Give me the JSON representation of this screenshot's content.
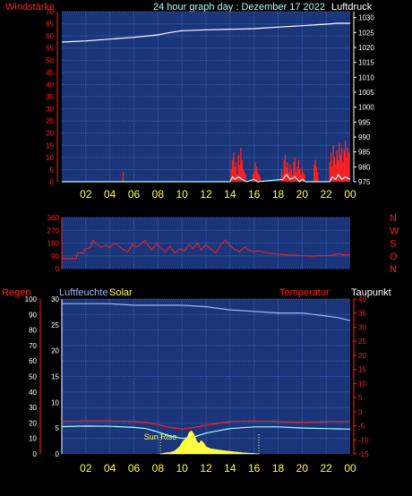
{
  "header": {
    "left_label": "Windstärke",
    "title": "24 hour graph day : Dezember 17 2022",
    "right_label": "Luftdruck"
  },
  "colors": {
    "background": "#000000",
    "plot_bg": "#1a3579",
    "grid": "#3f62b8",
    "red": "#ff2020",
    "white": "#ffffff",
    "cyan": "#a8ffff",
    "yellow": "#ffff40",
    "lightblue": "#a0b4ff"
  },
  "chart_data": [
    {
      "id": "top",
      "type": "line",
      "title": "24 hour graph day : Dezember 17 2022",
      "x_tick_labels": [
        "02",
        "04",
        "06",
        "08",
        "10",
        "12",
        "14",
        "16",
        "18",
        "20",
        "22",
        "00"
      ],
      "left_axis": {
        "label": "Windstärke",
        "ylim": [
          0,
          70
        ],
        "ticks": [
          0,
          5,
          10,
          15,
          20,
          25,
          30,
          35,
          40,
          45,
          50,
          55,
          60,
          65,
          70
        ]
      },
      "right_axis": {
        "label": "Luftdruck",
        "ylim": [
          975,
          1032
        ],
        "ticks": [
          975,
          980,
          985,
          990,
          995,
          1000,
          1005,
          1010,
          1015,
          1020,
          1025,
          1030
        ]
      },
      "series": [
        {
          "axis": "right",
          "color": "white",
          "kind": "line",
          "points": [
            [
              0,
              1021.8
            ],
            [
              2,
              1022.2
            ],
            [
              4,
              1022.8
            ],
            [
              6,
              1023.4
            ],
            [
              8,
              1024.2
            ],
            [
              9,
              1025.0
            ],
            [
              10,
              1025.6
            ],
            [
              12,
              1025.9
            ],
            [
              14,
              1026.1
            ],
            [
              16,
              1026.3
            ],
            [
              18,
              1026.8
            ],
            [
              20,
              1027.3
            ],
            [
              22,
              1027.8
            ],
            [
              23,
              1028.1
            ],
            [
              24,
              1028.1
            ]
          ]
        },
        {
          "axis": "left",
          "color": "red",
          "kind": "bars",
          "points": [
            [
              5.1,
              4
            ],
            [
              14.1,
              5
            ],
            [
              14.2,
              9
            ],
            [
              14.3,
              12
            ],
            [
              14.4,
              6
            ],
            [
              14.5,
              8
            ],
            [
              14.6,
              3
            ],
            [
              14.7,
              11
            ],
            [
              14.8,
              7
            ],
            [
              14.9,
              14
            ],
            [
              15.0,
              9
            ],
            [
              15.1,
              5
            ],
            [
              15.2,
              4
            ],
            [
              15.3,
              3
            ],
            [
              15.9,
              3
            ],
            [
              16.0,
              4
            ],
            [
              16.1,
              8
            ],
            [
              16.2,
              6
            ],
            [
              16.3,
              4
            ],
            [
              16.4,
              3
            ],
            [
              16.5,
              2
            ],
            [
              18.3,
              5
            ],
            [
              18.4,
              3
            ],
            [
              18.5,
              9
            ],
            [
              18.6,
              11
            ],
            [
              18.7,
              6
            ],
            [
              18.8,
              8
            ],
            [
              18.9,
              4
            ],
            [
              19.0,
              7
            ],
            [
              19.1,
              5
            ],
            [
              19.2,
              3
            ],
            [
              19.3,
              8
            ],
            [
              19.4,
              10
            ],
            [
              19.5,
              4
            ],
            [
              19.6,
              6
            ],
            [
              19.7,
              9
            ],
            [
              19.8,
              5
            ],
            [
              19.9,
              3
            ],
            [
              20.0,
              6
            ],
            [
              20.1,
              4
            ],
            [
              20.2,
              3
            ],
            [
              21.0,
              7
            ],
            [
              21.1,
              9
            ],
            [
              21.2,
              6
            ],
            [
              21.3,
              4
            ],
            [
              22.3,
              8
            ],
            [
              22.4,
              12
            ],
            [
              22.5,
              6
            ],
            [
              22.6,
              15
            ],
            [
              22.7,
              10
            ],
            [
              22.8,
              7
            ],
            [
              22.9,
              13
            ],
            [
              23.0,
              9
            ],
            [
              23.1,
              16
            ],
            [
              23.2,
              11
            ],
            [
              23.3,
              14
            ],
            [
              23.4,
              8
            ],
            [
              23.5,
              13
            ],
            [
              23.6,
              17
            ],
            [
              23.7,
              10
            ],
            [
              23.8,
              14
            ],
            [
              23.9,
              12
            ]
          ]
        },
        {
          "axis": "left",
          "color": "cyan",
          "kind": "line",
          "points": [
            [
              0,
              0
            ],
            [
              14.0,
              0
            ],
            [
              14.2,
              2
            ],
            [
              14.4,
              1
            ],
            [
              14.7,
              2
            ],
            [
              15.0,
              1
            ],
            [
              15.4,
              0
            ],
            [
              16.0,
              1
            ],
            [
              16.3,
              0
            ],
            [
              18.4,
              1
            ],
            [
              18.7,
              3
            ],
            [
              19.0,
              1
            ],
            [
              19.4,
              2
            ],
            [
              19.8,
              0
            ],
            [
              20.0,
              1
            ],
            [
              20.3,
              0
            ],
            [
              22.3,
              0
            ],
            [
              22.5,
              2
            ],
            [
              22.8,
              1
            ],
            [
              23.0,
              3
            ],
            [
              23.3,
              1
            ],
            [
              23.6,
              2
            ],
            [
              24,
              1
            ]
          ]
        }
      ]
    },
    {
      "id": "wind_direction",
      "type": "line",
      "x_tick_labels": [],
      "left_axis": {
        "ylim": [
          0,
          360
        ],
        "ticks": [
          0,
          90,
          180,
          270,
          360
        ]
      },
      "right_axis": {
        "ylim": [
          0,
          360
        ],
        "labels": [
          "N",
          "W",
          "S",
          "O",
          "N"
        ]
      },
      "series": [
        {
          "color": "red",
          "kind": "line",
          "points": [
            [
              0,
              70
            ],
            [
              1.2,
              70
            ],
            [
              1.3,
              110
            ],
            [
              1.8,
              110
            ],
            [
              1.9,
              135
            ],
            [
              2.4,
              150
            ],
            [
              2.6,
              200
            ],
            [
              2.9,
              175
            ],
            [
              3.3,
              150
            ],
            [
              3.6,
              165
            ],
            [
              4.0,
              150
            ],
            [
              4.4,
              180
            ],
            [
              4.8,
              155
            ],
            [
              5.1,
              135
            ],
            [
              5.5,
              120
            ],
            [
              5.9,
              175
            ],
            [
              6.2,
              150
            ],
            [
              6.6,
              175
            ],
            [
              6.9,
              200
            ],
            [
              7.2,
              160
            ],
            [
              7.5,
              130
            ],
            [
              7.9,
              180
            ],
            [
              8.2,
              145
            ],
            [
              8.6,
              120
            ],
            [
              9.0,
              160
            ],
            [
              9.4,
              110
            ],
            [
              9.8,
              140
            ],
            [
              10.2,
              125
            ],
            [
              10.6,
              170
            ],
            [
              10.9,
              140
            ],
            [
              11.3,
              180
            ],
            [
              11.6,
              130
            ],
            [
              12.0,
              170
            ],
            [
              12.4,
              140
            ],
            [
              12.8,
              110
            ],
            [
              13.2,
              165
            ],
            [
              13.6,
              200
            ],
            [
              14.0,
              160
            ],
            [
              14.4,
              135
            ],
            [
              14.8,
              120
            ],
            [
              15.2,
              150
            ],
            [
              15.6,
              130
            ],
            [
              16.0,
              120
            ],
            [
              16.4,
              125
            ],
            [
              16.8,
              115
            ],
            [
              17.2,
              110
            ],
            [
              17.8,
              105
            ],
            [
              18.4,
              100
            ],
            [
              19.0,
              95
            ],
            [
              19.6,
              95
            ],
            [
              20.2,
              90
            ],
            [
              20.8,
              88
            ],
            [
              21.4,
              90
            ],
            [
              22.0,
              92
            ],
            [
              22.6,
              95
            ],
            [
              23.0,
              105
            ],
            [
              23.4,
              98
            ],
            [
              24,
              100
            ]
          ]
        }
      ]
    },
    {
      "id": "bottom",
      "type": "line",
      "x_tick_labels": [
        "02",
        "04",
        "06",
        "08",
        "10",
        "12",
        "14",
        "16",
        "18",
        "20",
        "22",
        "00"
      ],
      "header_labels": {
        "regen": "Regen",
        "luftfeuchte": "Luftfeuchte",
        "solar": "Solar",
        "temperatur": "Temperatur",
        "taupunkt": "Taupunkt"
      },
      "left_axis_1": {
        "label": "Regen",
        "ylim": [
          0,
          100
        ],
        "ticks": [
          0,
          10,
          20,
          30,
          40,
          50,
          60,
          70,
          80,
          90,
          100
        ]
      },
      "left_axis_2": {
        "label": "Luftfeuchte",
        "ylim": [
          0,
          30
        ],
        "ticks": [
          0,
          5,
          10,
          15,
          20,
          25,
          30
        ]
      },
      "right_axis": {
        "label": "Temperatur",
        "ylim": [
          -15,
          40
        ],
        "ticks": [
          -15,
          -10,
          -5,
          0,
          5,
          10,
          15,
          20,
          25,
          30,
          35,
          40
        ]
      },
      "annotation": "Sun Rise",
      "sun_rise_hour": 8.2,
      "sun_set_hour": 16.4,
      "series": [
        {
          "name": "Luftfeuchte",
          "axis": "humidity",
          "color": "lightblue",
          "kind": "line",
          "points": [
            [
              0,
              97
            ],
            [
              2,
              97
            ],
            [
              4,
              97
            ],
            [
              6,
              96
            ],
            [
              8,
              96
            ],
            [
              10,
              96
            ],
            [
              12,
              95
            ],
            [
              13,
              94
            ],
            [
              14,
              93
            ],
            [
              16,
              92
            ],
            [
              18,
              91
            ],
            [
              20,
              91
            ],
            [
              21,
              90
            ],
            [
              22,
              89
            ],
            [
              23,
              88
            ],
            [
              24,
              86
            ]
          ]
        },
        {
          "name": "Temperatur",
          "axis": "temperature",
          "color": "red",
          "kind": "line",
          "points": [
            [
              0,
              -3.5
            ],
            [
              2,
              -3.3
            ],
            [
              4,
              -3.3
            ],
            [
              6,
              -3.5
            ],
            [
              7,
              -3.8
            ],
            [
              8,
              -4.6
            ],
            [
              9,
              -5.6
            ],
            [
              10,
              -6.2
            ],
            [
              11,
              -5.6
            ],
            [
              12,
              -4.8
            ],
            [
              13,
              -4.2
            ],
            [
              14,
              -3.5
            ],
            [
              16,
              -3.3
            ],
            [
              18,
              -3.5
            ],
            [
              20,
              -3.8
            ],
            [
              22,
              -3.5
            ],
            [
              24,
              -3.5
            ]
          ]
        },
        {
          "name": "Taupunkt",
          "axis": "temperature",
          "color": "cyan",
          "kind": "line",
          "points": [
            [
              0,
              -5.3
            ],
            [
              2,
              -5.1
            ],
            [
              4,
              -5.2
            ],
            [
              6,
              -5.6
            ],
            [
              7,
              -6.0
            ],
            [
              8,
              -7.2
            ],
            [
              9,
              -8.6
            ],
            [
              10,
              -9.5
            ],
            [
              11,
              -9.0
            ],
            [
              12,
              -7.6
            ],
            [
              13,
              -6.8
            ],
            [
              14,
              -6.0
            ],
            [
              16,
              -5.4
            ],
            [
              18,
              -5.4
            ],
            [
              20,
              -5.8
            ],
            [
              22,
              -6.0
            ],
            [
              24,
              -6.2
            ]
          ]
        },
        {
          "name": "Solar",
          "axis": "solar",
          "color": "yellow",
          "kind": "area",
          "points": [
            [
              8.2,
              0
            ],
            [
              8.6,
              0.2
            ],
            [
              9.0,
              0.3
            ],
            [
              9.4,
              0.6
            ],
            [
              9.8,
              1.4
            ],
            [
              10.0,
              2.2
            ],
            [
              10.2,
              2.8
            ],
            [
              10.4,
              3.0
            ],
            [
              10.6,
              4.2
            ],
            [
              10.8,
              4.5
            ],
            [
              11.0,
              3.8
            ],
            [
              11.2,
              2.6
            ],
            [
              11.4,
              2.0
            ],
            [
              11.6,
              2.6
            ],
            [
              11.8,
              2.2
            ],
            [
              12.0,
              1.4
            ],
            [
              12.4,
              1.0
            ],
            [
              13.0,
              0.8
            ],
            [
              13.6,
              0.6
            ],
            [
              14.4,
              0.4
            ],
            [
              15.2,
              0.2
            ],
            [
              16.0,
              0.1
            ],
            [
              16.4,
              0
            ]
          ]
        }
      ]
    }
  ]
}
